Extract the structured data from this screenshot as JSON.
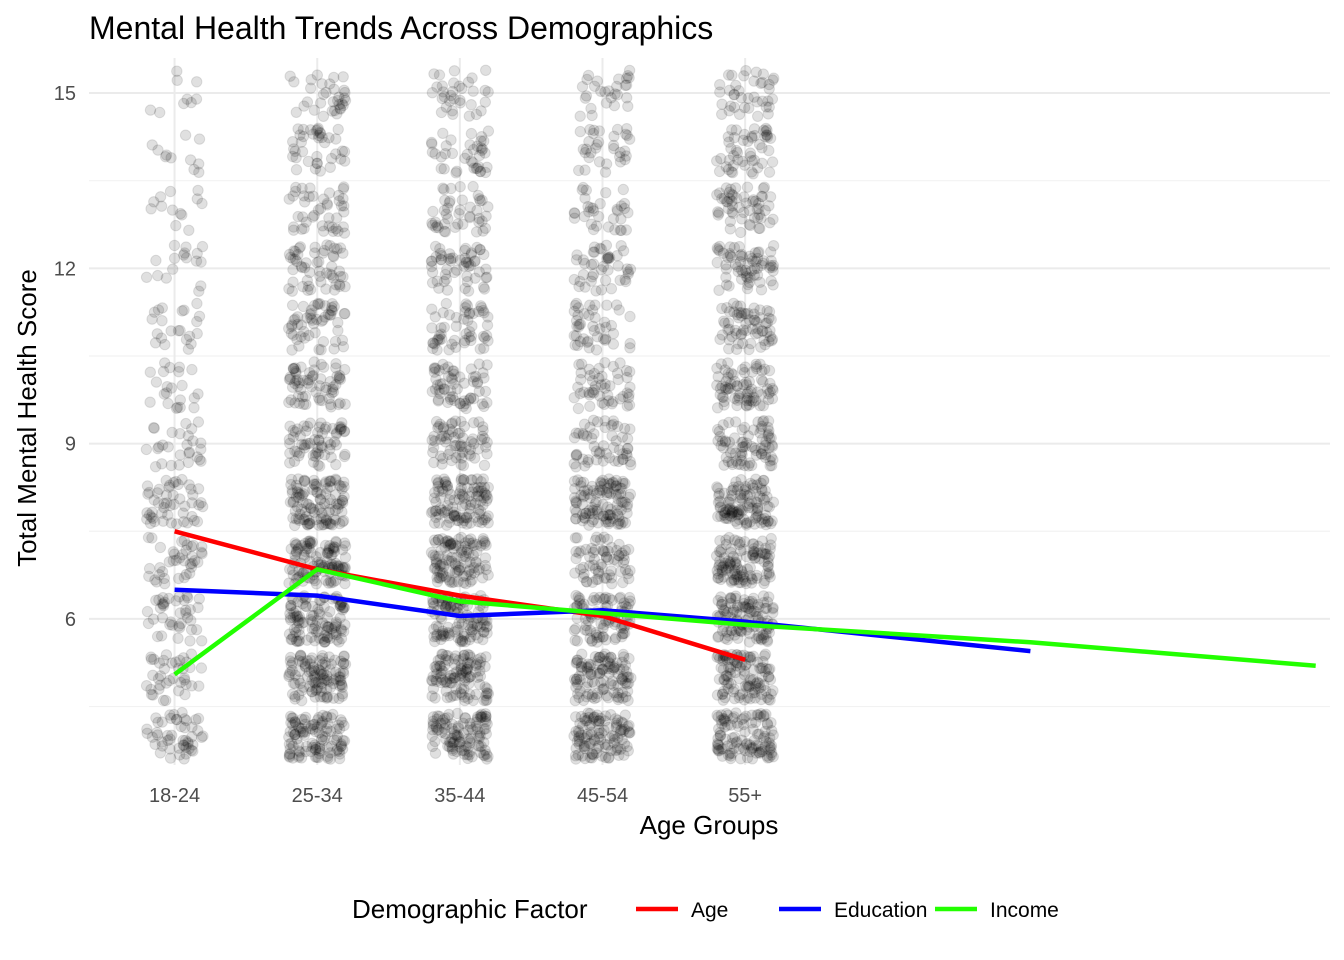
{
  "chart_data": {
    "type": "scatter",
    "title": "Mental Health Trends Across Demographics",
    "xlabel": "Age Groups",
    "ylabel": "Total Mental Health Score",
    "categories": [
      "18-24",
      "25-34",
      "35-44",
      "45-54",
      "55+"
    ],
    "x_range": [
      0.4,
      9.1
    ],
    "ylim": [
      3.5,
      15.6
    ],
    "y_ticks": [
      6,
      9,
      12,
      15
    ],
    "grid": true,
    "legend": {
      "title": "Demographic Factor",
      "position": "bottom"
    },
    "scatter_points": {
      "description_level": "jittered points at integer scores 4-15 for each age group, higher density at lower scores",
      "color": "#000000",
      "opacity": 0.12,
      "score_values": [
        4,
        5,
        6,
        7,
        8,
        9,
        10,
        11,
        12,
        13,
        14,
        15
      ],
      "relative_density": {
        "18-24": [
          0.45,
          0.35,
          0.35,
          0.35,
          0.45,
          0.25,
          0.2,
          0.2,
          0.15,
          0.12,
          0.1,
          0.08
        ],
        "25-34": [
          1.0,
          1.0,
          1.0,
          1.0,
          1.0,
          0.6,
          0.6,
          0.5,
          0.5,
          0.4,
          0.35,
          0.3
        ],
        "35-44": [
          1.0,
          1.0,
          1.0,
          1.0,
          1.0,
          0.6,
          0.55,
          0.5,
          0.5,
          0.4,
          0.35,
          0.3
        ],
        "45-54": [
          1.0,
          1.0,
          0.8,
          0.6,
          1.0,
          0.5,
          0.45,
          0.4,
          0.4,
          0.3,
          0.3,
          0.25
        ],
        "55+": [
          1.0,
          1.0,
          1.0,
          1.0,
          1.0,
          0.7,
          0.7,
          0.6,
          0.6,
          0.5,
          0.45,
          0.35
        ]
      }
    },
    "series": [
      {
        "name": "Age",
        "color": "#ff0000",
        "x": [
          1,
          2,
          3,
          4,
          5
        ],
        "values": [
          7.5,
          6.85,
          6.4,
          6.05,
          5.3
        ]
      },
      {
        "name": "Education",
        "color": "#0000ff",
        "x": [
          1,
          2,
          3,
          4,
          5,
          6,
          7
        ],
        "values": [
          6.5,
          6.4,
          6.05,
          6.15,
          5.95,
          5.7,
          5.45
        ]
      },
      {
        "name": "Income",
        "color": "#22ff00",
        "x": [
          1,
          2,
          3,
          4,
          5,
          6,
          7,
          8,
          9
        ],
        "values": [
          5.05,
          6.85,
          6.3,
          6.1,
          5.9,
          5.75,
          5.6,
          5.4,
          5.2
        ]
      }
    ]
  }
}
